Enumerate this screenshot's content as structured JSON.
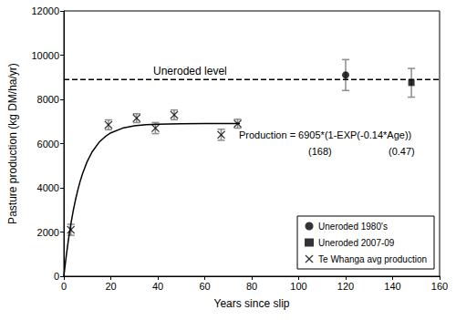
{
  "chart_data": {
    "type": "scatter",
    "x_label": "Years since slip",
    "y_label": "Pasture production (kg DM/ha/yr)",
    "xlim": [
      0,
      160
    ],
    "xticks": [
      0,
      20,
      40,
      60,
      80,
      100,
      120,
      140,
      160
    ],
    "ylim": [
      0,
      12000
    ],
    "yticks": [
      0,
      2000,
      4000,
      6000,
      8000,
      10000,
      12000
    ],
    "grid": false,
    "legend": "lower right",
    "series": [
      {
        "name": "Uneroded 1980's",
        "type": "scatter",
        "marker": "circle",
        "color": "#000000",
        "x": [
          120
        ],
        "values": [
          9100
        ],
        "error": [
          700
        ]
      },
      {
        "name": "Uneroded 2007-09",
        "type": "scatter",
        "marker": "square",
        "color": "#000000",
        "x": [
          148
        ],
        "values": [
          8750
        ],
        "error": [
          650
        ]
      },
      {
        "name": "Te Whanga avg production",
        "type": "scatter",
        "marker": "cross",
        "color": "#000000",
        "x": [
          3,
          19,
          31,
          39,
          47,
          67,
          74
        ],
        "values": [
          2100,
          6850,
          7150,
          6700,
          7300,
          6400,
          6900
        ],
        "error": [
          250,
          220,
          200,
          250,
          220,
          250,
          200
        ]
      }
    ],
    "fit_curve": {
      "type": "line",
      "color": "#000000",
      "line_style": "solid",
      "x": [
        0,
        1,
        2,
        3,
        4,
        5,
        6,
        7,
        8,
        10,
        12,
        15,
        18,
        20,
        25,
        30,
        35,
        40,
        50,
        60,
        75
      ],
      "values": [
        0,
        902,
        1686,
        2368,
        2961,
        3476,
        3924,
        4314,
        4652,
        5202,
        5618,
        6059,
        6349,
        6485,
        6697,
        6801,
        6854,
        6879,
        6899,
        6904,
        6905
      ]
    },
    "reference_line": {
      "label": "Uneroded level",
      "value": 8900,
      "line_style": "dashed",
      "color": "#000000"
    },
    "annotations": [
      "Production = 6905*(1-EXP(-0.14*Age))",
      "(168)",
      "(0.47)"
    ]
  }
}
